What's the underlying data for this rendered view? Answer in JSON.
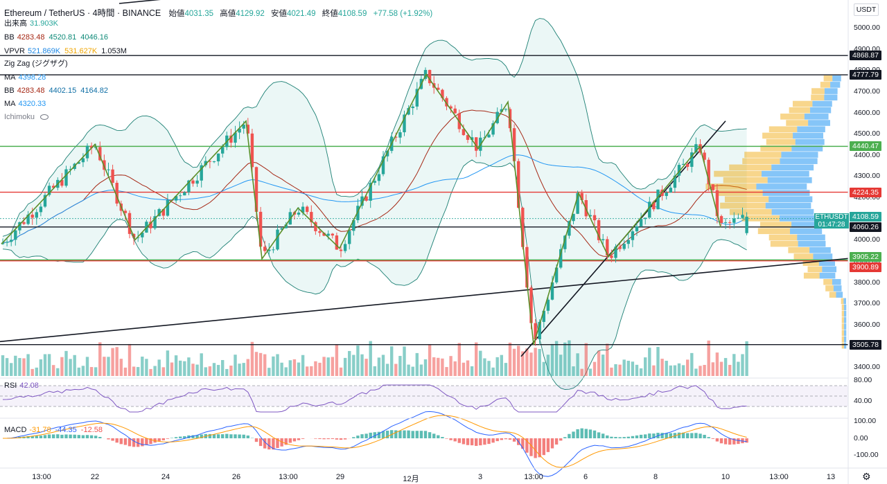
{
  "header": {
    "title": "Ethereum / TetherUS · 4時間 · BINANCE",
    "open_label": "始値",
    "open": "4031.35",
    "high_label": "高値",
    "high": "4129.92",
    "low_label": "安値",
    "low": "4021.49",
    "close_label": "終値",
    "close": "4108.59",
    "change": "+77.58 (+1.92%)"
  },
  "indicators": {
    "volume": {
      "label": "出来高",
      "value": "31.903K"
    },
    "bb1": {
      "label": "BB",
      "v1": "4283.48",
      "v2": "4520.81",
      "v3": "4046.16"
    },
    "vpvr": {
      "label": "VPVR",
      "v1": "521.869K",
      "v2": "531.627K",
      "v3": "1.053M"
    },
    "zigzag": {
      "label": "Zig Zag (ジグザグ)"
    },
    "ma1": {
      "label": "MA",
      "value": "4398.28"
    },
    "bb2": {
      "label": "BB",
      "v1": "4283.48",
      "v2": "4402.15",
      "v3": "4164.82"
    },
    "ma2": {
      "label": "MA",
      "value": "4320.33"
    },
    "ichimoku": {
      "label": "Ichimoku"
    }
  },
  "rsi": {
    "label": "RSI",
    "value": "42.08"
  },
  "macd": {
    "label": "MACD",
    "v1": "-31.78",
    "v2": "-44.35",
    "v3": "-12.58"
  },
  "currency": "USDT",
  "symbol_badge": {
    "symbol": "ETHUSDT",
    "countdown": "01:47:28"
  },
  "price_badges": [
    {
      "value": "4868.87",
      "color": "#131722"
    },
    {
      "value": "4777.79",
      "color": "#131722"
    },
    {
      "value": "4440.47",
      "color": "#4caf50"
    },
    {
      "value": "4224.35",
      "color": "#e53935"
    },
    {
      "value": "4108.59",
      "color": "#26a69a"
    },
    {
      "value": "4060.26",
      "color": "#131722"
    },
    {
      "value": "3905.22",
      "color": "#4caf50"
    },
    {
      "value": "3900.89",
      "color": "#e53935"
    },
    {
      "value": "3505.78",
      "color": "#131722"
    }
  ],
  "price_axis": [
    "5000.00",
    "4900.00",
    "4800.00",
    "4700.00",
    "4600.00",
    "4500.00",
    "4400.00",
    "4300.00",
    "4200.00",
    "4100.00",
    "4000.00",
    "3900.00",
    "3800.00",
    "3700.00",
    "3600.00",
    "3500.00",
    "3400.00"
  ],
  "rsi_axis": [
    "80.00",
    "40.00"
  ],
  "macd_axis": [
    "100.00",
    "0.00",
    "-100.00"
  ],
  "time_axis": [
    "13:00",
    "22",
    "24",
    "26",
    "13:00",
    "29",
    "12月",
    "3",
    "13:00",
    "6",
    "8",
    "10",
    "13:00",
    "13"
  ],
  "colors": {
    "up": "#26a69a",
    "down": "#ef5350",
    "green_line": "#4caf50",
    "red_line": "#e53935"
  },
  "chart_data": {
    "type": "candlestick",
    "symbol": "ETHUSDT",
    "interval": "4時間",
    "ylim": [
      3380,
      5060
    ],
    "horizontal_lines": [
      4868.87,
      4777.79,
      4440.47,
      4224.35,
      4060.26,
      3905.22,
      3900.89,
      3505.78
    ],
    "key_points": [
      {
        "x": "21",
        "price": 3980
      },
      {
        "x": "22",
        "price": 4450
      },
      {
        "x": "23",
        "price": 4000
      },
      {
        "x": "25",
        "price": 4560
      },
      {
        "x": "26 13:00",
        "price": 3910
      },
      {
        "x": "27",
        "price": 4150
      },
      {
        "x": "28",
        "price": 3960
      },
      {
        "x": "12月 1",
        "price": 4780
      },
      {
        "x": "2",
        "price": 4430
      },
      {
        "x": "3",
        "price": 4650
      },
      {
        "x": "4",
        "price": 3505
      },
      {
        "x": "5",
        "price": 4220
      },
      {
        "x": "6",
        "price": 3920
      },
      {
        "x": "9",
        "price": 4440
      },
      {
        "x": "10",
        "price": 4060
      },
      {
        "x": "10 last",
        "price": 4108.59
      }
    ]
  }
}
